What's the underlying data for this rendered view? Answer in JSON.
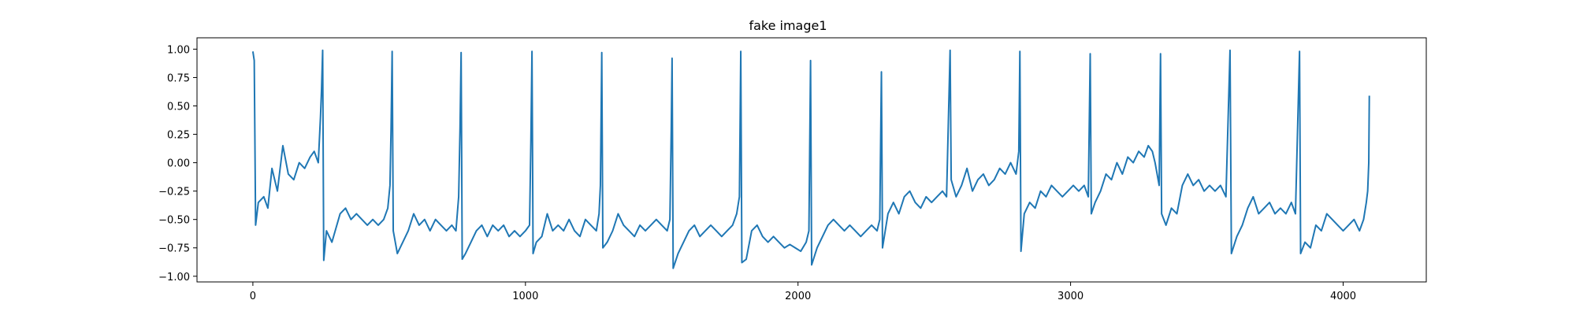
{
  "chart_data": {
    "type": "line",
    "title": "fake image1",
    "xlabel": "",
    "ylabel": "",
    "xlim": [
      -205,
      4305
    ],
    "ylim": [
      -1.05,
      1.1
    ],
    "x_ticks": [
      0,
      1000,
      2000,
      3000,
      4000
    ],
    "y_ticks": [
      -1.0,
      -0.75,
      -0.5,
      -0.25,
      0.0,
      0.25,
      0.5,
      0.75,
      1.0
    ],
    "x_tick_labels": [
      "0",
      "1000",
      "2000",
      "3000",
      "4000"
    ],
    "y_tick_labels": [
      "−1.00",
      "−0.75",
      "−0.50",
      "−0.25",
      "0.00",
      "0.25",
      "0.50",
      "0.75",
      "1.00"
    ],
    "grid": false,
    "legend": "none",
    "series": [
      {
        "color": "#1f77b4",
        "points": [
          [
            0,
            0.98
          ],
          [
            5,
            0.9
          ],
          [
            10,
            -0.55
          ],
          [
            20,
            -0.35
          ],
          [
            40,
            -0.3
          ],
          [
            55,
            -0.4
          ],
          [
            70,
            -0.05
          ],
          [
            90,
            -0.25
          ],
          [
            110,
            0.15
          ],
          [
            130,
            -0.1
          ],
          [
            150,
            -0.15
          ],
          [
            170,
            0.0
          ],
          [
            190,
            -0.05
          ],
          [
            210,
            0.05
          ],
          [
            225,
            0.1
          ],
          [
            240,
            0.0
          ],
          [
            248,
            0.4
          ],
          [
            252,
            0.65
          ],
          [
            256,
            0.99
          ],
          [
            260,
            -0.86
          ],
          [
            270,
            -0.6
          ],
          [
            290,
            -0.7
          ],
          [
            320,
            -0.45
          ],
          [
            340,
            -0.4
          ],
          [
            360,
            -0.5
          ],
          [
            380,
            -0.45
          ],
          [
            400,
            -0.5
          ],
          [
            420,
            -0.55
          ],
          [
            440,
            -0.5
          ],
          [
            460,
            -0.55
          ],
          [
            480,
            -0.5
          ],
          [
            495,
            -0.4
          ],
          [
            503,
            -0.2
          ],
          [
            507,
            0.3
          ],
          [
            511,
            0.98
          ],
          [
            515,
            -0.6
          ],
          [
            530,
            -0.8
          ],
          [
            550,
            -0.7
          ],
          [
            570,
            -0.6
          ],
          [
            590,
            -0.45
          ],
          [
            610,
            -0.55
          ],
          [
            630,
            -0.5
          ],
          [
            650,
            -0.6
          ],
          [
            670,
            -0.5
          ],
          [
            690,
            -0.55
          ],
          [
            710,
            -0.6
          ],
          [
            730,
            -0.55
          ],
          [
            745,
            -0.6
          ],
          [
            755,
            -0.3
          ],
          [
            760,
            0.3
          ],
          [
            764,
            0.97
          ],
          [
            768,
            -0.85
          ],
          [
            780,
            -0.8
          ],
          [
            800,
            -0.7
          ],
          [
            820,
            -0.6
          ],
          [
            840,
            -0.55
          ],
          [
            860,
            -0.65
          ],
          [
            880,
            -0.55
          ],
          [
            900,
            -0.6
          ],
          [
            920,
            -0.55
          ],
          [
            940,
            -0.65
          ],
          [
            960,
            -0.6
          ],
          [
            980,
            -0.65
          ],
          [
            1000,
            -0.6
          ],
          [
            1015,
            -0.55
          ],
          [
            1020,
            0.2
          ],
          [
            1024,
            0.98
          ],
          [
            1028,
            -0.8
          ],
          [
            1040,
            -0.7
          ],
          [
            1060,
            -0.65
          ],
          [
            1080,
            -0.45
          ],
          [
            1100,
            -0.6
          ],
          [
            1120,
            -0.55
          ],
          [
            1140,
            -0.6
          ],
          [
            1160,
            -0.5
          ],
          [
            1180,
            -0.6
          ],
          [
            1200,
            -0.65
          ],
          [
            1220,
            -0.5
          ],
          [
            1240,
            -0.55
          ],
          [
            1260,
            -0.6
          ],
          [
            1270,
            -0.45
          ],
          [
            1275,
            -0.2
          ],
          [
            1280,
            0.97
          ],
          [
            1284,
            -0.75
          ],
          [
            1300,
            -0.7
          ],
          [
            1320,
            -0.6
          ],
          [
            1340,
            -0.45
          ],
          [
            1360,
            -0.55
          ],
          [
            1380,
            -0.6
          ],
          [
            1400,
            -0.65
          ],
          [
            1420,
            -0.55
          ],
          [
            1440,
            -0.6
          ],
          [
            1460,
            -0.55
          ],
          [
            1480,
            -0.5
          ],
          [
            1500,
            -0.55
          ],
          [
            1520,
            -0.6
          ],
          [
            1530,
            -0.5
          ],
          [
            1535,
            0.3
          ],
          [
            1538,
            0.92
          ],
          [
            1542,
            -0.93
          ],
          [
            1560,
            -0.8
          ],
          [
            1580,
            -0.7
          ],
          [
            1600,
            -0.6
          ],
          [
            1620,
            -0.55
          ],
          [
            1640,
            -0.65
          ],
          [
            1660,
            -0.6
          ],
          [
            1680,
            -0.55
          ],
          [
            1700,
            -0.6
          ],
          [
            1720,
            -0.65
          ],
          [
            1740,
            -0.6
          ],
          [
            1760,
            -0.55
          ],
          [
            1775,
            -0.45
          ],
          [
            1785,
            -0.3
          ],
          [
            1790,
            0.98
          ],
          [
            1794,
            -0.88
          ],
          [
            1810,
            -0.85
          ],
          [
            1830,
            -0.6
          ],
          [
            1850,
            -0.55
          ],
          [
            1870,
            -0.65
          ],
          [
            1890,
            -0.7
          ],
          [
            1910,
            -0.65
          ],
          [
            1930,
            -0.7
          ],
          [
            1950,
            -0.75
          ],
          [
            1970,
            -0.72
          ],
          [
            1990,
            -0.75
          ],
          [
            2010,
            -0.78
          ],
          [
            2030,
            -0.7
          ],
          [
            2040,
            -0.6
          ],
          [
            2046,
            0.9
          ],
          [
            2050,
            -0.9
          ],
          [
            2070,
            -0.75
          ],
          [
            2090,
            -0.65
          ],
          [
            2110,
            -0.55
          ],
          [
            2130,
            -0.5
          ],
          [
            2150,
            -0.55
          ],
          [
            2170,
            -0.6
          ],
          [
            2190,
            -0.55
          ],
          [
            2210,
            -0.6
          ],
          [
            2230,
            -0.65
          ],
          [
            2250,
            -0.6
          ],
          [
            2270,
            -0.55
          ],
          [
            2290,
            -0.6
          ],
          [
            2300,
            -0.5
          ],
          [
            2306,
            0.8
          ],
          [
            2310,
            -0.75
          ],
          [
            2330,
            -0.45
          ],
          [
            2350,
            -0.35
          ],
          [
            2370,
            -0.45
          ],
          [
            2390,
            -0.3
          ],
          [
            2410,
            -0.25
          ],
          [
            2430,
            -0.35
          ],
          [
            2450,
            -0.4
          ],
          [
            2470,
            -0.3
          ],
          [
            2490,
            -0.35
          ],
          [
            2510,
            -0.3
          ],
          [
            2530,
            -0.25
          ],
          [
            2545,
            -0.3
          ],
          [
            2552,
            0.4
          ],
          [
            2558,
            0.99
          ],
          [
            2562,
            -0.15
          ],
          [
            2580,
            -0.3
          ],
          [
            2600,
            -0.2
          ],
          [
            2620,
            -0.05
          ],
          [
            2640,
            -0.25
          ],
          [
            2660,
            -0.15
          ],
          [
            2680,
            -0.1
          ],
          [
            2700,
            -0.2
          ],
          [
            2720,
            -0.15
          ],
          [
            2740,
            -0.05
          ],
          [
            2760,
            -0.1
          ],
          [
            2780,
            0.0
          ],
          [
            2800,
            -0.1
          ],
          [
            2810,
            0.1
          ],
          [
            2814,
            0.98
          ],
          [
            2818,
            -0.78
          ],
          [
            2830,
            -0.45
          ],
          [
            2850,
            -0.35
          ],
          [
            2870,
            -0.4
          ],
          [
            2890,
            -0.25
          ],
          [
            2910,
            -0.3
          ],
          [
            2930,
            -0.2
          ],
          [
            2950,
            -0.25
          ],
          [
            2970,
            -0.3
          ],
          [
            2990,
            -0.25
          ],
          [
            3010,
            -0.2
          ],
          [
            3030,
            -0.25
          ],
          [
            3050,
            -0.2
          ],
          [
            3065,
            -0.3
          ],
          [
            3072,
            0.96
          ],
          [
            3076,
            -0.45
          ],
          [
            3090,
            -0.35
          ],
          [
            3110,
            -0.25
          ],
          [
            3130,
            -0.1
          ],
          [
            3150,
            -0.15
          ],
          [
            3170,
            0.0
          ],
          [
            3190,
            -0.1
          ],
          [
            3210,
            0.05
          ],
          [
            3230,
            0.0
          ],
          [
            3250,
            0.1
          ],
          [
            3270,
            0.05
          ],
          [
            3285,
            0.15
          ],
          [
            3300,
            0.1
          ],
          [
            3310,
            0.0
          ],
          [
            3325,
            -0.2
          ],
          [
            3330,
            0.96
          ],
          [
            3334,
            -0.45
          ],
          [
            3350,
            -0.55
          ],
          [
            3370,
            -0.4
          ],
          [
            3390,
            -0.45
          ],
          [
            3410,
            -0.2
          ],
          [
            3430,
            -0.1
          ],
          [
            3450,
            -0.2
          ],
          [
            3470,
            -0.15
          ],
          [
            3490,
            -0.25
          ],
          [
            3510,
            -0.2
          ],
          [
            3530,
            -0.25
          ],
          [
            3550,
            -0.2
          ],
          [
            3570,
            -0.3
          ],
          [
            3585,
            0.99
          ],
          [
            3590,
            -0.8
          ],
          [
            3610,
            -0.65
          ],
          [
            3630,
            -0.55
          ],
          [
            3650,
            -0.4
          ],
          [
            3670,
            -0.3
          ],
          [
            3690,
            -0.45
          ],
          [
            3710,
            -0.4
          ],
          [
            3730,
            -0.35
          ],
          [
            3750,
            -0.45
          ],
          [
            3770,
            -0.4
          ],
          [
            3790,
            -0.45
          ],
          [
            3810,
            -0.35
          ],
          [
            3825,
            -0.45
          ],
          [
            3840,
            0.98
          ],
          [
            3844,
            -0.8
          ],
          [
            3860,
            -0.7
          ],
          [
            3880,
            -0.75
          ],
          [
            3900,
            -0.55
          ],
          [
            3920,
            -0.6
          ],
          [
            3940,
            -0.45
          ],
          [
            3960,
            -0.5
          ],
          [
            3980,
            -0.55
          ],
          [
            4000,
            -0.6
          ],
          [
            4020,
            -0.55
          ],
          [
            4040,
            -0.5
          ],
          [
            4060,
            -0.6
          ],
          [
            4075,
            -0.5
          ],
          [
            4085,
            -0.35
          ],
          [
            4090,
            -0.25
          ],
          [
            4094,
            0.0
          ],
          [
            4096,
            0.59
          ]
        ]
      }
    ]
  }
}
